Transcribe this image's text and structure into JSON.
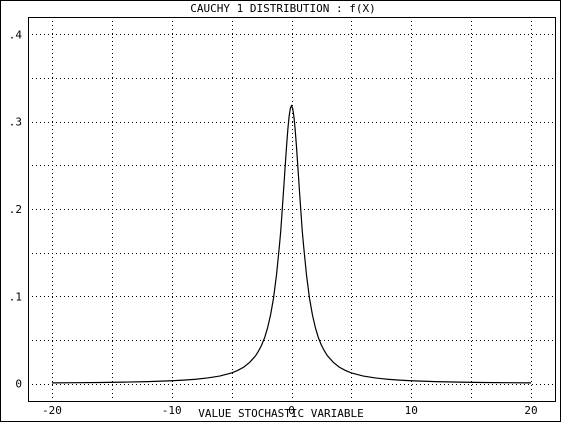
{
  "chart_data": {
    "type": "line",
    "title": "CAUCHY 1 DISTRIBUTION : f(X)",
    "xlabel": "VALUE STOCHASTIC VARIABLE",
    "ylabel": "",
    "xlim": [
      -22,
      22
    ],
    "ylim": [
      -0.02,
      0.42
    ],
    "x_ticks": [
      -20,
      -10,
      0,
      10,
      20
    ],
    "x_tick_labels": [
      "-20",
      "-10",
      "0",
      "10",
      "20"
    ],
    "y_ticks": [
      0,
      0.1,
      0.2,
      0.3,
      0.4
    ],
    "y_tick_labels": [
      "0",
      ".1",
      ".2",
      ".3",
      ".4"
    ],
    "grid": true,
    "grid_style": "dotted",
    "series": [
      {
        "color": "#000000",
        "x": [
          -20,
          -18,
          -16,
          -14,
          -12,
          -10,
          -9,
          -8,
          -7,
          -6,
          -5,
          -4.5,
          -4,
          -3.5,
          -3,
          -2.75,
          -2.5,
          -2.25,
          -2,
          -1.75,
          -1.5,
          -1.25,
          -1,
          -0.9,
          -0.8,
          -0.7,
          -0.6,
          -0.5,
          -0.4,
          -0.3,
          -0.2,
          -0.1,
          0,
          0.1,
          0.2,
          0.3,
          0.4,
          0.5,
          0.6,
          0.7,
          0.8,
          0.9,
          1,
          1.25,
          1.5,
          1.75,
          2,
          2.25,
          2.5,
          2.75,
          3,
          3.5,
          4,
          4.5,
          5,
          6,
          7,
          8,
          9,
          10,
          12,
          14,
          16,
          18,
          20
        ],
        "y": [
          0.0008,
          0.001,
          0.0012,
          0.0016,
          0.0022,
          0.0032,
          0.0039,
          0.0049,
          0.0064,
          0.0086,
          0.0122,
          0.015,
          0.0187,
          0.0242,
          0.0318,
          0.0373,
          0.0439,
          0.0523,
          0.0637,
          0.0786,
          0.0979,
          0.1247,
          0.1592,
          0.1744,
          0.1941,
          0.2139,
          0.2341,
          0.2546,
          0.2744,
          0.2921,
          0.3061,
          0.3152,
          0.3183,
          0.3152,
          0.3061,
          0.2921,
          0.2744,
          0.2546,
          0.2341,
          0.2139,
          0.1941,
          0.1744,
          0.1592,
          0.1247,
          0.0979,
          0.0786,
          0.0637,
          0.0523,
          0.0439,
          0.0373,
          0.0318,
          0.0242,
          0.0187,
          0.015,
          0.0122,
          0.0086,
          0.0064,
          0.0049,
          0.0039,
          0.0032,
          0.0022,
          0.0016,
          0.0012,
          0.001,
          0.0008
        ]
      }
    ]
  }
}
